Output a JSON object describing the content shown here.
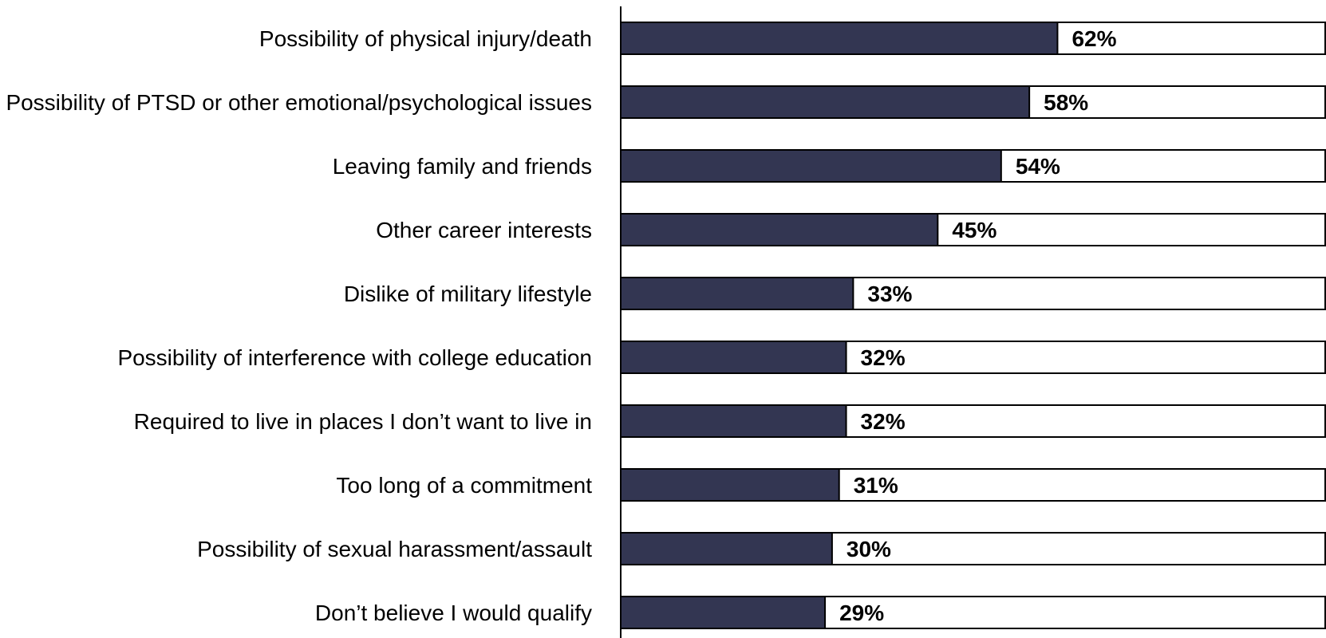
{
  "chart_data": {
    "type": "bar",
    "orientation": "horizontal",
    "stacked_with_remainder": true,
    "categories": [
      "Possibility of physical injury/death",
      "Possibility of PTSD or other emotional/psychological issues",
      "Leaving family and friends",
      "Other career interests",
      "Dislike of military lifestyle",
      "Possibility of interference with college education",
      "Required to live in places I don’t want to live in",
      "Too long of a commitment",
      "Possibility of sexual harassment/assault",
      "Don’t believe I would qualify"
    ],
    "values": [
      62,
      58,
      54,
      45,
      33,
      32,
      32,
      31,
      30,
      29
    ],
    "value_labels": [
      "62%",
      "58%",
      "54%",
      "45%",
      "33%",
      "32%",
      "32%",
      "31%",
      "30%",
      "29%"
    ],
    "xlim": [
      0,
      100
    ],
    "title": "",
    "xlabel": "",
    "ylabel": "",
    "grid": false,
    "legend": "none",
    "colors": {
      "bar": "#333652",
      "remainder": "#ffffff",
      "outline": "#000000"
    }
  }
}
